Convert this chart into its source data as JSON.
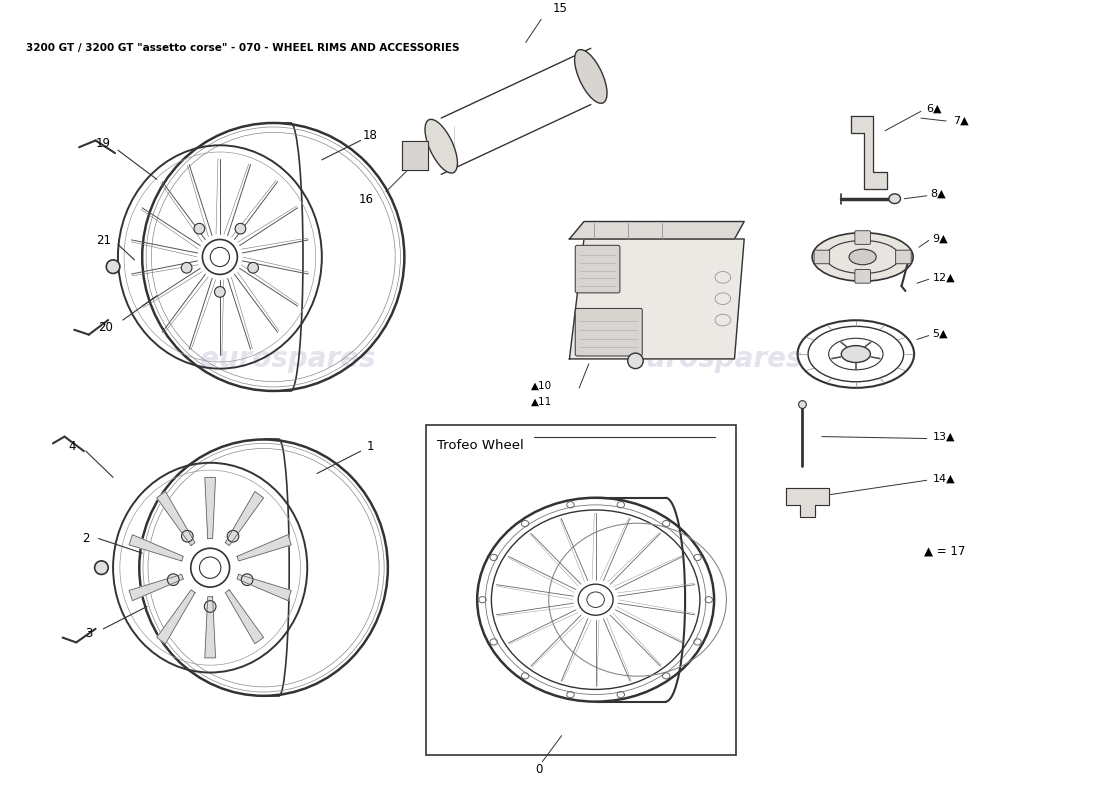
{
  "title": "3200 GT / 3200 GT \"assetto corse\" - 070 - WHEEL RIMS AND ACCESSORIES",
  "title_fontsize": 7.5,
  "bg_color": "#ffffff",
  "text_color": "#000000",
  "watermark_color": "#c8c8dc",
  "watermark_text": "eurospares",
  "trofeo_label": "Trofeo Wheel",
  "triangle_note": "▲ = 17"
}
